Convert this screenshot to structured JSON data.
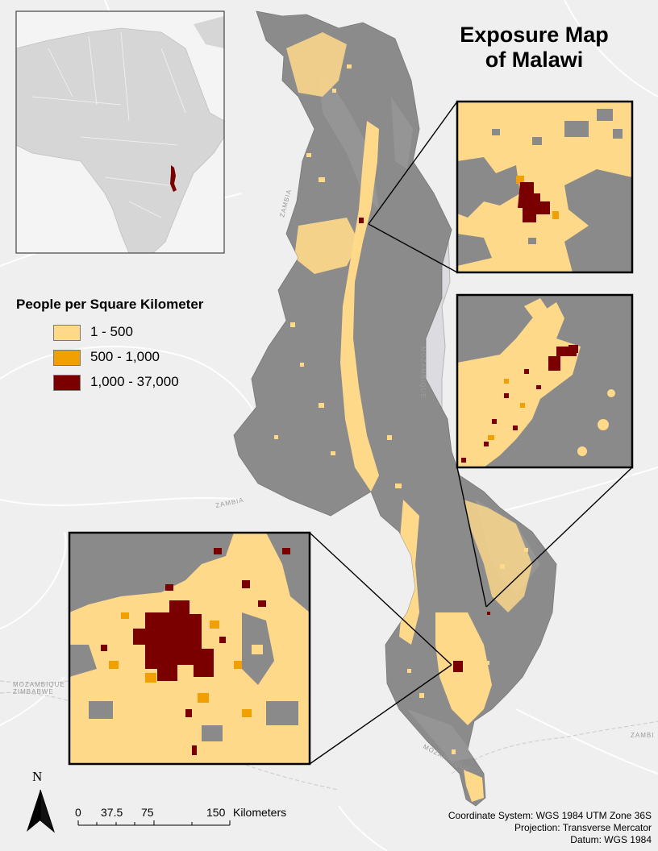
{
  "title": {
    "line1": "Exposure Map",
    "line2": "of Malawi"
  },
  "legend": {
    "title": "People per Square Kilometer",
    "items": [
      {
        "label": "1 - 500",
        "color": "#ffd98a"
      },
      {
        "label": "500 - 1,000",
        "color": "#f0a000"
      },
      {
        "label": "1,000 - 37,000",
        "color": "#7a0000"
      }
    ]
  },
  "scale_bar": {
    "ticks": [
      "0",
      "37.5",
      "75",
      "150"
    ],
    "units": "Kilometers"
  },
  "north_arrow": {
    "label": "N"
  },
  "coordinate_info": {
    "system": "Coordinate System: WGS 1984 UTM Zone 36S",
    "projection": "Projection: Transverse Mercator",
    "datum": "Datum: WGS 1984"
  },
  "basemap_labels": [
    "ZAMBIA",
    "ZAMBIA",
    "MOZAMBIQUE",
    "MOZAMBIQUE",
    "ZIMBABWE",
    "MOZAMBIQUE",
    "ZAMBI"
  ],
  "colors": {
    "background": "#efefef",
    "country": "#8b8b8b",
    "lake": "#dcdce0",
    "low": "#ffd98a",
    "medium": "#f0a000",
    "high": "#7a0000",
    "inset_terrain": "#8a8a8a"
  }
}
